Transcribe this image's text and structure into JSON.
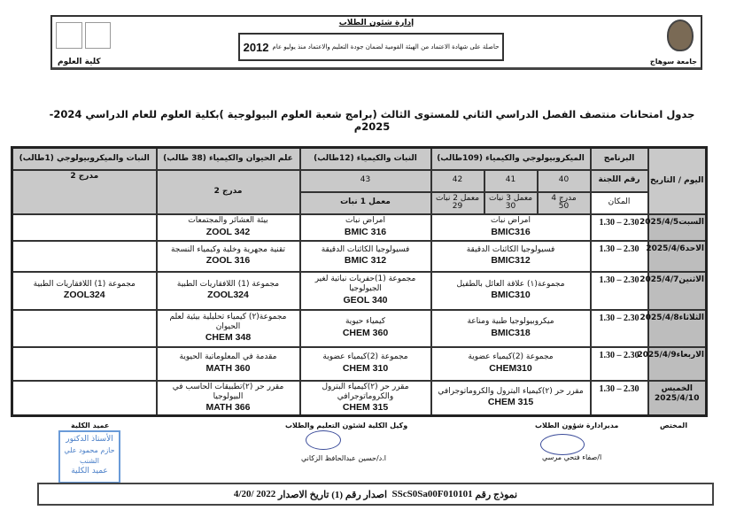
{
  "letterhead": {
    "department": "إدارة شئون الطلاب",
    "accreditation": "حاصلة على شهادة الاعتماد من الهيئة القومية لضمان جودة التعليم والاعتماد منذ يوليو عام",
    "accreditation_year": "2012",
    "university": "جامعة سوهاج",
    "faculty": "كلية العلوم",
    "logos": [
      "EGAC",
      "AIAV"
    ]
  },
  "title": "جدول امتحانات منتصف الفصل الدراسي الثاني للمستوى الثالث (برامج شعبة العلوم البيولوجية )بكلية العلوم للعام الدراسي 2024-2025م",
  "table": {
    "day_date_header": "اليوم / التاريخ",
    "program_label": "البرنامج",
    "committee_label": "رقم اللجنة",
    "place_label": "المكان",
    "programs": [
      "الميكروبيولوجي والكيمياء (109طالب)",
      "النبات والكيمياء (12طالب)",
      "علم الحيوان والكيمياء (38 طالب)",
      "النبات والميكروبيولوجي (1طالب)"
    ],
    "committees": [
      "40",
      "41",
      "42",
      "43"
    ],
    "places": [
      {
        "name": "مدرج 4",
        "count": "50"
      },
      {
        "name": "معمل 3 نبات",
        "count": "30"
      },
      {
        "name": "معمل 2 نبات",
        "count": "29"
      },
      {
        "name": "معمل 1 نبات"
      },
      {
        "name": "مدرج 2"
      },
      {
        "name": "مدرج 2"
      }
    ],
    "rows": [
      {
        "date": "السبت2025/4/5",
        "time": "2.30 – 1.30",
        "c1": {
          "name": "امراض نبات",
          "code": "BMIC316"
        },
        "c2": {
          "name": "امراض نبات",
          "code": "BMIC  316"
        },
        "c3": {
          "name": "بيئة العشائر والمجتمعات",
          "code": "ZOOL  342"
        },
        "c4": {
          "name": "",
          "code": ""
        }
      },
      {
        "date": "الاحد2025/4/6",
        "time": "2.30 – 1.30",
        "c1": {
          "name": "فسيولوجيا الكائنات الدقيقة",
          "code": "BMIC312"
        },
        "c2": {
          "name": "فسيولوجيا الكائنات الدقيقة",
          "code": "BMIC  312"
        },
        "c3": {
          "name": "تقنية مجهرية وخلية وكيمياء النسجة",
          "code": "ZOOL  316"
        },
        "c4": {
          "name": "",
          "code": ""
        }
      },
      {
        "date": "الاثنين2025/4/7",
        "time": "2.30 – 1.30",
        "c1": {
          "name": "مجموعة(١) علاقة العائل بالطفيل",
          "code": "BMIC310"
        },
        "c2": {
          "name": "مجموعة (1)حفريات نباتية لغير الجيولوجيا",
          "code": "GEOL  340"
        },
        "c3": {
          "name": "مجموعة (1) اللافقاريات الطبية",
          "code": "ZOOL324"
        },
        "c4": {
          "name": "مجموعة (1) اللافقاريات الطبية",
          "code": "ZOOL324"
        }
      },
      {
        "date": "الثلاثاء2025/4/8",
        "time": "2.30 – 1.30",
        "c1": {
          "name": "ميكروبيولوجيا طبية ومناعة",
          "code": "BMIC318"
        },
        "c2": {
          "name": "كيمياء حيوية",
          "code": "CHEM  360"
        },
        "c3": {
          "name": "مجموعة(٢) كيمياء تحليلية بيئية لعلم الحيوان",
          "code": "CHEM  348"
        },
        "c4": {
          "name": "",
          "code": ""
        }
      },
      {
        "date": "الاربعاء2025/4/9",
        "time": "2.30 – 1.30",
        "c1": {
          "name": "مجموعة (2)كيمياء عضوية",
          "code": "CHEM310"
        },
        "c2": {
          "name": "مجموعة (2)كيمياء عضوية",
          "code": "CHEM 310"
        },
        "c3": {
          "name": "مقدمة في المعلوماتية الحيوية",
          "code": "MATH 360"
        },
        "c4": {
          "name": "",
          "code": ""
        }
      },
      {
        "date": "الخميس 2025/4/10",
        "time": "2.30 – 1.30",
        "c1": {
          "name": "مقرر حر (٢)كيمياء البترول والكروماتوجرافي",
          "code": "CHEM  315"
        },
        "c2": {
          "name": "مقرر حر (٢)كيمياء البترول والكروماتوجرافي",
          "code": "CHEM  315"
        },
        "c3": {
          "name": "مقرر حر (٢)تطبيقات الحاسب في البيولوجيا",
          "code": "MATH  366"
        },
        "c4": {
          "name": "",
          "code": ""
        }
      }
    ]
  },
  "signatures": {
    "specialist": "المختص",
    "student_affairs_title": "مديرادارة شؤون الطلاب",
    "student_affairs_name": "ا/صفاء فتحي مرسي",
    "vice_dean_title": "وكيل الكلية لشئون التعليم والطلاب",
    "vice_dean_name": "ا.د/حسين عبدالحافظ الزكاني",
    "dean_title": "عميد الكلية",
    "stamp_lines": [
      "الأستاذ الدكتور",
      "حازم محمود علي الشنب",
      "عميد الكلية"
    ]
  },
  "footer": {
    "form_label": "نموذج رقم",
    "form_code": "SScS0Sa00F010101",
    "issue_label": "اصدار رقم (1)",
    "issue_date_label": "تاريخ الاصدار",
    "issue_date": "4/20/ 2022"
  }
}
